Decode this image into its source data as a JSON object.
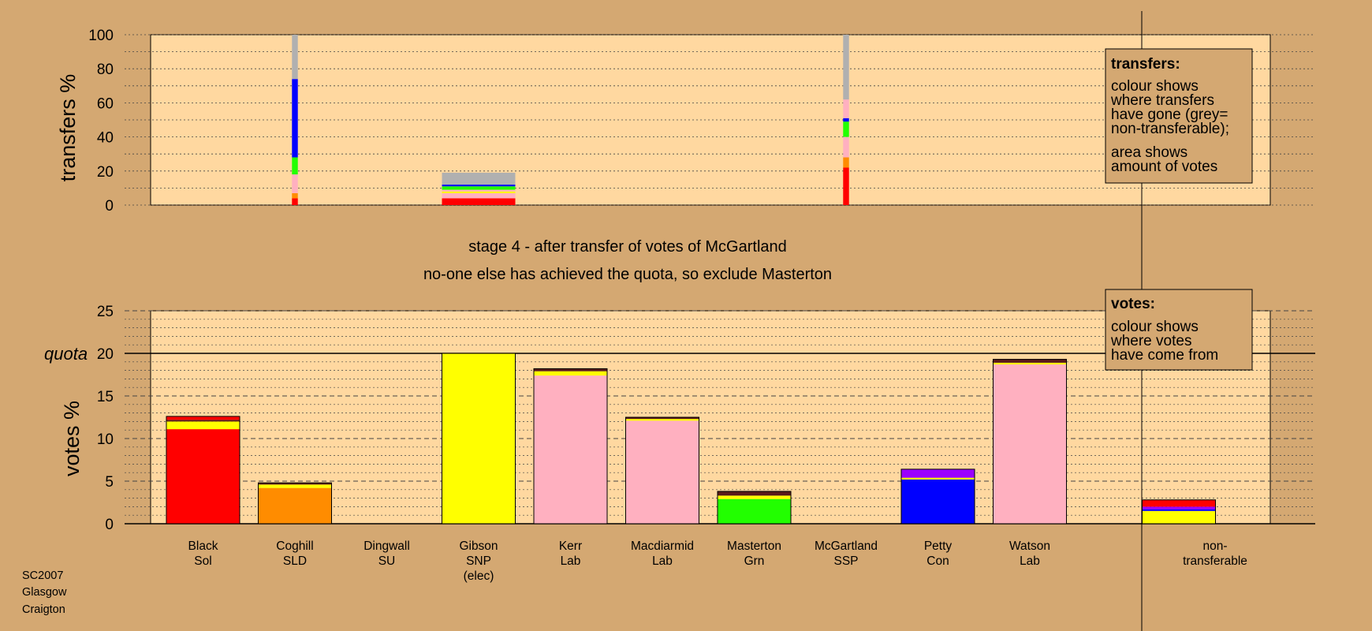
{
  "footer": [
    "SC2007",
    "Glasgow",
    "Craigton"
  ],
  "stage_title": "stage 4 - after transfer of votes of McGartland",
  "stage_subtitle": "no-one else has achieved the quota, so exclude Masterton",
  "colors": {
    "page_bg": "#d4a872",
    "plot_bg": "#ffd8a0",
    "red": "#ff0000",
    "orange": "#ff8c00",
    "yellow": "#ffff00",
    "pink": "#ffb0c0",
    "green": "#22ff00",
    "blue": "#0000ff",
    "grey": "#b0b0b0",
    "purple": "#9b00ff",
    "dark": "#5a1a1a"
  },
  "legend_transfers": {
    "title": "transfers:",
    "lines1": [
      "colour shows",
      "where transfers",
      "have gone (grey=",
      "non-transferable);"
    ],
    "lines2": [
      "area shows",
      "amount of votes"
    ]
  },
  "legend_votes": {
    "title": "votes:",
    "lines": [
      "colour shows",
      "where votes",
      "have come from"
    ]
  },
  "chart_data": [
    {
      "type": "bar",
      "name": "transfers",
      "ylabel": "transfers %",
      "ylim": [
        0,
        100
      ],
      "yticks": [
        0,
        20,
        40,
        60,
        80,
        100
      ],
      "bars": [
        {
          "category": "Coghill SLD",
          "width_fraction": 0.08,
          "segments": [
            {
              "color": "red",
              "value": 4
            },
            {
              "color": "orange",
              "value": 3
            },
            {
              "color": "pink",
              "value": 11
            },
            {
              "color": "green",
              "value": 10
            },
            {
              "color": "blue",
              "value": 46
            },
            {
              "color": "grey",
              "value": 26
            }
          ]
        },
        {
          "category": "Gibson SNP (elec)",
          "width_fraction": 1.0,
          "segments": [
            {
              "color": "red",
              "value": 4
            },
            {
              "color": "pink",
              "value": 3
            },
            {
              "color": "yellow",
              "value": 1
            },
            {
              "color": "pink",
              "value": 1
            },
            {
              "color": "green",
              "value": 2
            },
            {
              "color": "blue",
              "value": 1
            },
            {
              "color": "grey",
              "value": 7
            }
          ]
        },
        {
          "category": "McGartland SSP",
          "width_fraction": 0.08,
          "segments": [
            {
              "color": "red",
              "value": 22
            },
            {
              "color": "orange",
              "value": 6
            },
            {
              "color": "pink",
              "value": 12
            },
            {
              "color": "green",
              "value": 9
            },
            {
              "color": "blue",
              "value": 2
            },
            {
              "color": "pink",
              "value": 11
            },
            {
              "color": "grey",
              "value": 38
            }
          ]
        }
      ]
    },
    {
      "type": "bar",
      "name": "votes",
      "ylabel": "votes %",
      "ylim": [
        0,
        25
      ],
      "yticks": [
        0,
        5,
        10,
        15,
        20,
        25
      ],
      "quota": 20,
      "quota_label": "quota",
      "categories": [
        {
          "line1": "Black",
          "line2": "Sol",
          "line3": ""
        },
        {
          "line1": "Coghill",
          "line2": "SLD",
          "line3": ""
        },
        {
          "line1": "Dingwall",
          "line2": "SU",
          "line3": ""
        },
        {
          "line1": "Gibson",
          "line2": "SNP",
          "line3": "(elec)"
        },
        {
          "line1": "Kerr",
          "line2": "Lab",
          "line3": ""
        },
        {
          "line1": "Macdiarmid",
          "line2": "Lab",
          "line3": ""
        },
        {
          "line1": "Masterton",
          "line2": "Grn",
          "line3": ""
        },
        {
          "line1": "McGartland",
          "line2": "SSP",
          "line3": ""
        },
        {
          "line1": "Petty",
          "line2": "Con",
          "line3": ""
        },
        {
          "line1": "Watson",
          "line2": "Lab",
          "line3": ""
        },
        {
          "line1": "non-",
          "line2": "transferable",
          "line3": ""
        }
      ],
      "stacks": [
        [
          {
            "color": "red",
            "value": 11.1
          },
          {
            "color": "yellow",
            "value": 0.9
          },
          {
            "color": "dark",
            "value": 0.2
          },
          {
            "color": "red",
            "value": 0.4
          }
        ],
        [
          {
            "color": "orange",
            "value": 4.2
          },
          {
            "color": "yellow",
            "value": 0.4
          },
          {
            "color": "dark",
            "value": 0.2
          }
        ],
        [],
        [
          {
            "color": "yellow",
            "value": 20.0
          }
        ],
        [
          {
            "color": "pink",
            "value": 17.4
          },
          {
            "color": "yellow",
            "value": 0.5
          },
          {
            "color": "dark",
            "value": 0.3
          }
        ],
        [
          {
            "color": "pink",
            "value": 12.1
          },
          {
            "color": "yellow",
            "value": 0.2
          },
          {
            "color": "dark",
            "value": 0.2
          }
        ],
        [
          {
            "color": "green",
            "value": 2.9
          },
          {
            "color": "yellow",
            "value": 0.4
          },
          {
            "color": "dark",
            "value": 0.5
          }
        ],
        [],
        [
          {
            "color": "blue",
            "value": 5.2
          },
          {
            "color": "yellow",
            "value": 0.2
          },
          {
            "color": "purple",
            "value": 1.0
          }
        ],
        [
          {
            "color": "pink",
            "value": 18.7
          },
          {
            "color": "yellow",
            "value": 0.2
          },
          {
            "color": "dark",
            "value": 0.4
          }
        ],
        [
          {
            "color": "yellow",
            "value": 1.5
          },
          {
            "color": "blue",
            "value": 0.2
          },
          {
            "color": "purple",
            "value": 0.3
          },
          {
            "color": "red",
            "value": 0.8
          }
        ]
      ]
    }
  ]
}
